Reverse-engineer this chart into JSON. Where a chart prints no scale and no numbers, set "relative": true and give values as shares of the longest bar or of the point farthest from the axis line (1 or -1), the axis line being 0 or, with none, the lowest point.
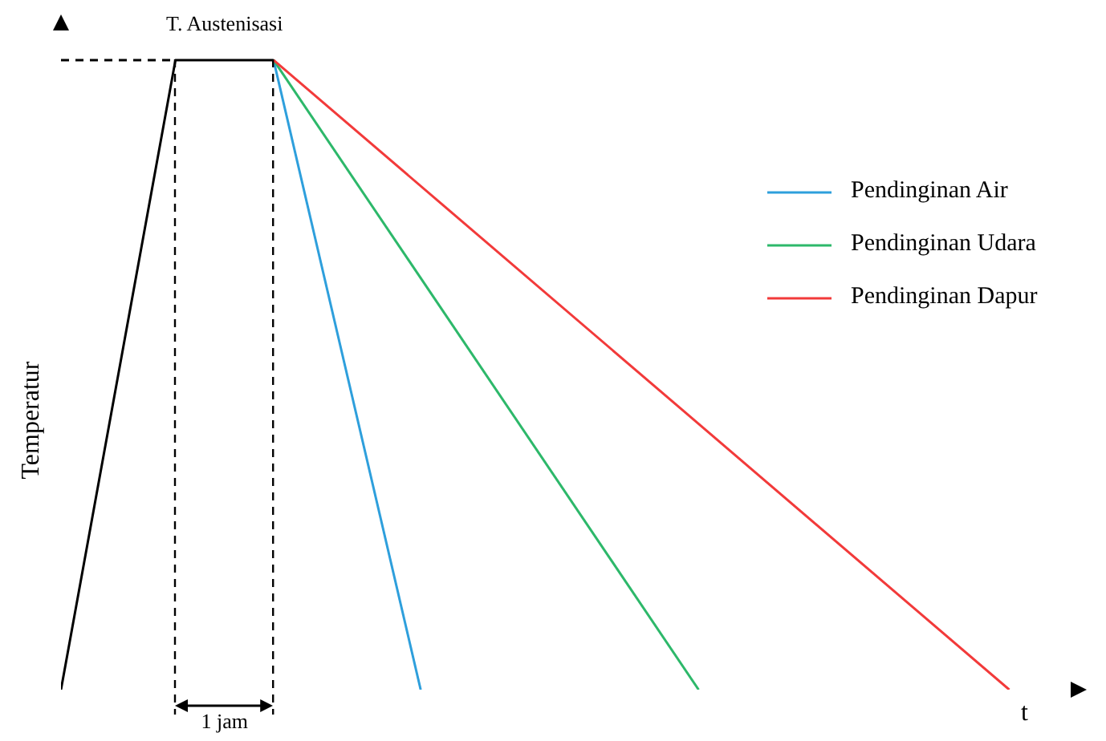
{
  "chart_data": {
    "type": "line",
    "relative": true,
    "xlabel": "t",
    "ylabel": "Temperatur",
    "legend": "top right",
    "marker": "none",
    "categories": [
      null,
      null,
      null,
      null,
      null,
      null,
      null,
      null,
      null,
      null,
      null,
      null,
      null,
      null,
      null,
      null,
      null,
      null,
      null,
      null,
      null,
      null,
      null,
      null,
      null,
      null,
      null,
      null,
      null,
      null,
      null,
      null,
      null,
      null,
      null,
      null,
      null,
      null,
      null,
      null,
      null,
      null,
      null,
      null,
      null,
      null,
      null,
      null,
      null,
      null,
      null,
      null,
      null,
      null,
      null,
      null,
      null,
      null,
      null
    ],
    "series": [
      {
        "color": "#000000",
        "values": [
          0,
          null,
          null,
          null,
          null,
          null,
          null,
          1,
          null,
          null,
          null,
          null,
          null,
          1,
          null,
          null,
          null,
          null,
          null,
          null,
          null,
          null,
          null,
          null,
          null,
          null,
          null,
          null,
          null,
          null,
          null,
          null,
          null,
          null,
          null,
          null,
          null,
          null,
          null,
          null,
          null,
          null,
          null,
          null,
          null,
          null,
          null,
          null,
          null,
          null,
          null,
          null,
          null,
          null,
          null,
          null,
          null,
          null,
          null
        ]
      },
      {
        "color": "#000000",
        "line_style": "dashed",
        "values": [
          1,
          null,
          null,
          null,
          null,
          null,
          null,
          1,
          null,
          null,
          null,
          null,
          null,
          null,
          null,
          null,
          null,
          null,
          null,
          null,
          null,
          null,
          null,
          null,
          null,
          null,
          null,
          null,
          null,
          null,
          null,
          null,
          null,
          null,
          null,
          null,
          null,
          null,
          null,
          null,
          null,
          null,
          null,
          null,
          null,
          null,
          null,
          null,
          null,
          null,
          null,
          null,
          null,
          null,
          null,
          null,
          null,
          null,
          null
        ]
      },
      {
        "name": "Pendinginan Air",
        "color": "#2e9fdc",
        "values": [
          null,
          null,
          null,
          null,
          null,
          null,
          null,
          null,
          null,
          null,
          null,
          null,
          null,
          1,
          null,
          null,
          null,
          null,
          null,
          null,
          null,
          null,
          0,
          null,
          null,
          null,
          null,
          null,
          null,
          null,
          null,
          null,
          null,
          null,
          null,
          null,
          null,
          null,
          null,
          null,
          null,
          null,
          null,
          null,
          null,
          null,
          null,
          null,
          null,
          null,
          null,
          null,
          null,
          null,
          null,
          null,
          null,
          null,
          null
        ]
      },
      {
        "name": "Pendinginan Udara",
        "color": "#2db86a",
        "values": [
          null,
          null,
          null,
          null,
          null,
          null,
          null,
          null,
          null,
          null,
          null,
          null,
          null,
          1,
          null,
          null,
          null,
          null,
          null,
          null,
          null,
          null,
          null,
          null,
          null,
          null,
          null,
          null,
          null,
          null,
          null,
          null,
          null,
          null,
          null,
          null,
          null,
          null,
          null,
          0,
          null,
          null,
          null,
          null,
          null,
          null,
          null,
          null,
          null,
          null,
          null,
          null,
          null,
          null,
          null,
          null,
          null,
          null,
          null
        ]
      },
      {
        "name": "Pendinginan Dapur",
        "color": "#f23a3a",
        "values": [
          null,
          null,
          null,
          null,
          null,
          null,
          null,
          null,
          null,
          null,
          null,
          null,
          null,
          1,
          null,
          null,
          null,
          null,
          null,
          null,
          null,
          null,
          null,
          null,
          null,
          null,
          null,
          null,
          null,
          null,
          null,
          null,
          null,
          null,
          null,
          null,
          null,
          null,
          null,
          null,
          null,
          null,
          null,
          null,
          null,
          null,
          null,
          null,
          null,
          null,
          null,
          null,
          null,
          null,
          null,
          null,
          null,
          null,
          0
        ]
      }
    ],
    "annotations": [
      "T. Austenisasi",
      "1 jam"
    ]
  }
}
